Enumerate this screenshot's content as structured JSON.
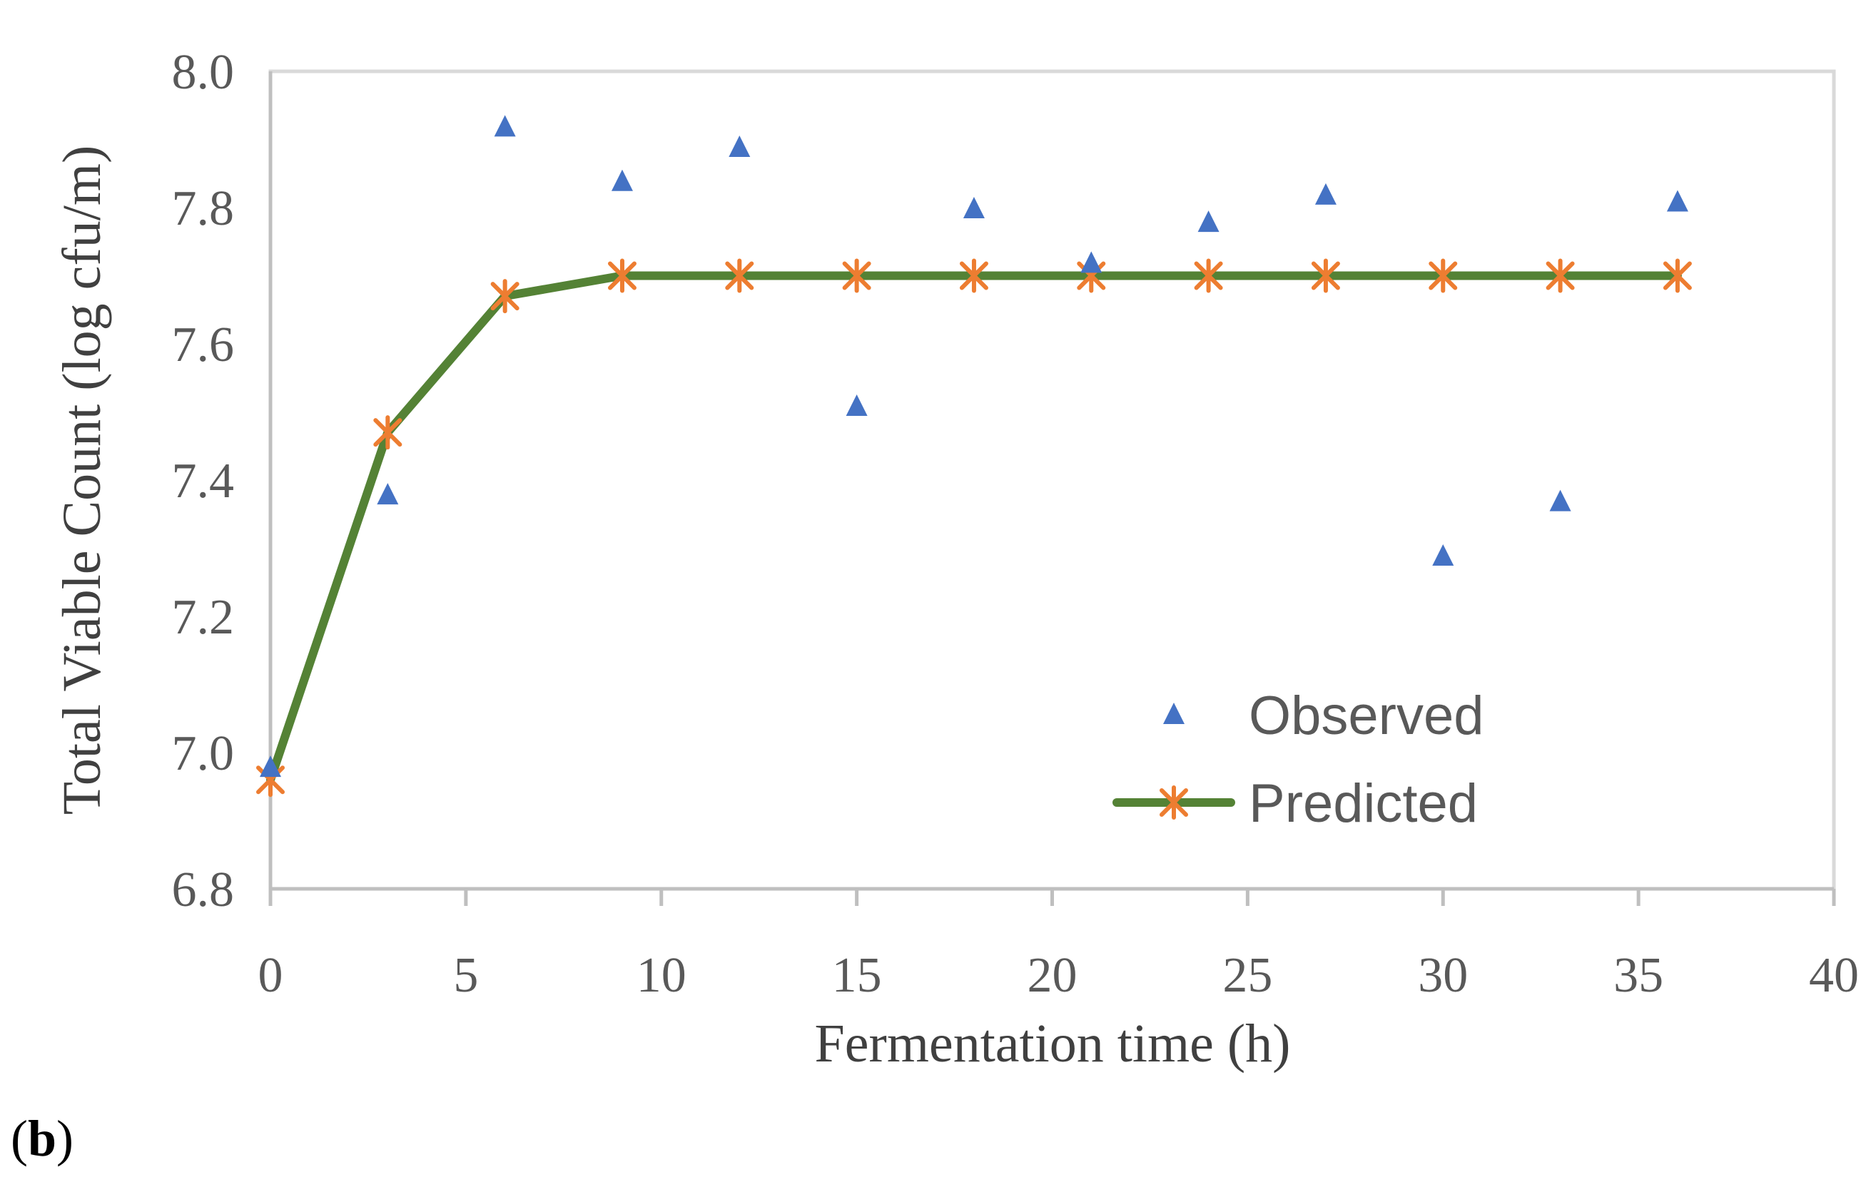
{
  "chart_data": {
    "type": "scatter",
    "xlabel": "Fermentation time (h)",
    "ylabel": "Total Viable Count (log cfu/m)",
    "xlim": [
      0,
      40
    ],
    "ylim": [
      6.8,
      8.0
    ],
    "x_ticks": [
      "0",
      "5",
      "10",
      "15",
      "20",
      "25",
      "30",
      "35",
      "40"
    ],
    "y_ticks": [
      "6.8",
      "7.0",
      "7.2",
      "7.4",
      "7.6",
      "7.8",
      "8.0"
    ],
    "legend_position": "bottom-right",
    "series": [
      {
        "name": "Observed",
        "marker": "triangle",
        "line": false,
        "color": "#4472C4",
        "x": [
          0,
          3,
          6,
          9,
          12,
          15,
          18,
          21,
          24,
          27,
          30,
          33,
          36
        ],
        "y": [
          6.98,
          7.38,
          7.92,
          7.84,
          7.89,
          7.51,
          7.8,
          7.72,
          7.78,
          7.82,
          7.29,
          7.37,
          7.81
        ]
      },
      {
        "name": "Predicted",
        "marker": "asterisk",
        "line": true,
        "color": "#548235",
        "marker_color": "#ED7D31",
        "x": [
          0,
          3,
          6,
          9,
          12,
          15,
          18,
          21,
          24,
          27,
          30,
          33,
          36
        ],
        "y": [
          6.96,
          7.47,
          7.67,
          7.7,
          7.7,
          7.7,
          7.7,
          7.7,
          7.7,
          7.7,
          7.7,
          7.7,
          7.7
        ]
      }
    ]
  },
  "panel_label": "b",
  "panel_label_open": "(",
  "panel_label_close": ")"
}
